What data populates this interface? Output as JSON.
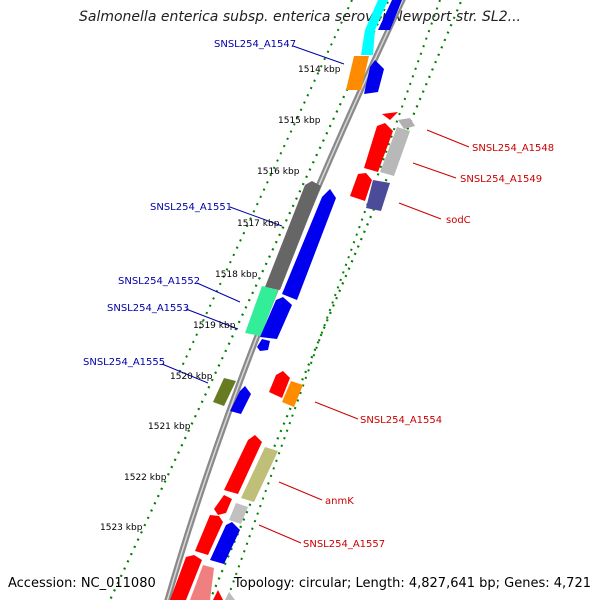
{
  "title": "Salmonella enterica subsp. enterica serovar Newport str. SL2...",
  "footer": {
    "accession": "Accession: NC_011080",
    "stats": "Topology: circular; Length: 4,827,641 bp; Genes: 4,721"
  },
  "scale_labels": [
    "1514 kbp",
    "1515 kbp",
    "1516 kbp",
    "1517 kbp",
    "1518 kbp",
    "1519 kbp",
    "1520 kbp",
    "1521 kbp",
    "1522 kbp",
    "1523 kbp"
  ],
  "gene_labels": [
    {
      "text": "SNSL254_A1547",
      "color": "#0000aa"
    },
    {
      "text": "SNSL254_A1548",
      "color": "#cc0000"
    },
    {
      "text": "SNSL254_A1549",
      "color": "#cc0000"
    },
    {
      "text": "sodC",
      "color": "#cc0000"
    },
    {
      "text": "SNSL254_A1551",
      "color": "#0000aa"
    },
    {
      "text": "SNSL254_A1552",
      "color": "#0000aa"
    },
    {
      "text": "SNSL254_A1553",
      "color": "#0000aa"
    },
    {
      "text": "SNSL254_A1555",
      "color": "#0000aa"
    },
    {
      "text": "SNSL254_A1554",
      "color": "#cc0000"
    },
    {
      "text": "anmK",
      "color": "#cc0000"
    },
    {
      "text": "SNSL254_A1557",
      "color": "#cc0000"
    }
  ],
  "colors": {
    "backbone": "#8a8a8a",
    "tick_track": "#008000",
    "forward_label": "#0000aa",
    "reverse_label": "#cc0000"
  }
}
